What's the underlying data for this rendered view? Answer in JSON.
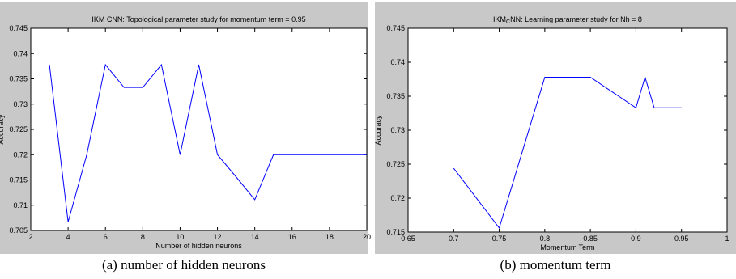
{
  "figure": {
    "caption_a": "(a) number of hidden neurons",
    "caption_b": "(b) momentum term"
  },
  "colors": {
    "line": "#0000ff",
    "panel_bg": "#c8c8c8",
    "axes_bg": "#ffffff",
    "text": "#000000"
  },
  "chart_data": [
    {
      "type": "line",
      "title": "IKM CNN: Topological parameter study for momentum term = 0.95",
      "xlabel": "Number of hidden neurons",
      "ylabel": "Accuracy",
      "xlim": [
        2,
        20
      ],
      "ylim": [
        0.705,
        0.745
      ],
      "xticks": [
        2,
        4,
        6,
        8,
        10,
        12,
        14,
        16,
        18,
        20
      ],
      "xtick_labels": [
        "2",
        "4",
        "6",
        "8",
        "10",
        "12",
        "14",
        "16",
        "18",
        "20"
      ],
      "yticks": [
        0.705,
        0.71,
        0.715,
        0.72,
        0.725,
        0.73,
        0.735,
        0.74,
        0.745
      ],
      "ytick_labels": [
        "0.705",
        "0.71",
        "0.715",
        "0.72",
        "0.725",
        "0.73",
        "0.735",
        "0.74",
        "0.745"
      ],
      "grid": false,
      "series": [
        {
          "x": [
            3,
            4,
            5,
            6,
            7,
            8,
            9,
            10,
            11,
            12,
            13,
            14,
            15,
            16,
            17,
            18,
            19,
            20
          ],
          "y": [
            0.7378,
            0.7067,
            0.72,
            0.7378,
            0.7333,
            0.7333,
            0.7378,
            0.72,
            0.7378,
            0.72,
            0.7156,
            0.7111,
            0.72,
            0.72,
            0.72,
            0.72,
            0.72,
            0.72
          ]
        }
      ]
    },
    {
      "type": "line",
      "title_prefix": "IKM",
      "title_sub": "C",
      "title_suffix": "NN: Learning parameter study for Nh = 8",
      "xlabel": "Momentum Term",
      "ylabel": "Accuracy",
      "xlim": [
        0.65,
        1
      ],
      "ylim": [
        0.715,
        0.745
      ],
      "xticks": [
        0.65,
        0.7,
        0.75,
        0.8,
        0.85,
        0.9,
        0.95,
        1
      ],
      "xtick_labels": [
        "0.65",
        "0.7",
        "0.75",
        "0.8",
        "0.85",
        "0.9",
        "0.95",
        "1"
      ],
      "yticks": [
        0.715,
        0.72,
        0.725,
        0.73,
        0.735,
        0.74,
        0.745
      ],
      "ytick_labels": [
        "0.715",
        "0.72",
        "0.725",
        "0.73",
        "0.735",
        "0.74",
        "0.745"
      ],
      "grid": false,
      "series": [
        {
          "x": [
            0.7,
            0.75,
            0.8,
            0.85,
            0.9,
            0.91,
            0.92,
            0.95
          ],
          "y": [
            0.7244,
            0.7156,
            0.7378,
            0.7378,
            0.7333,
            0.7378,
            0.7333,
            0.7333
          ]
        }
      ]
    }
  ]
}
